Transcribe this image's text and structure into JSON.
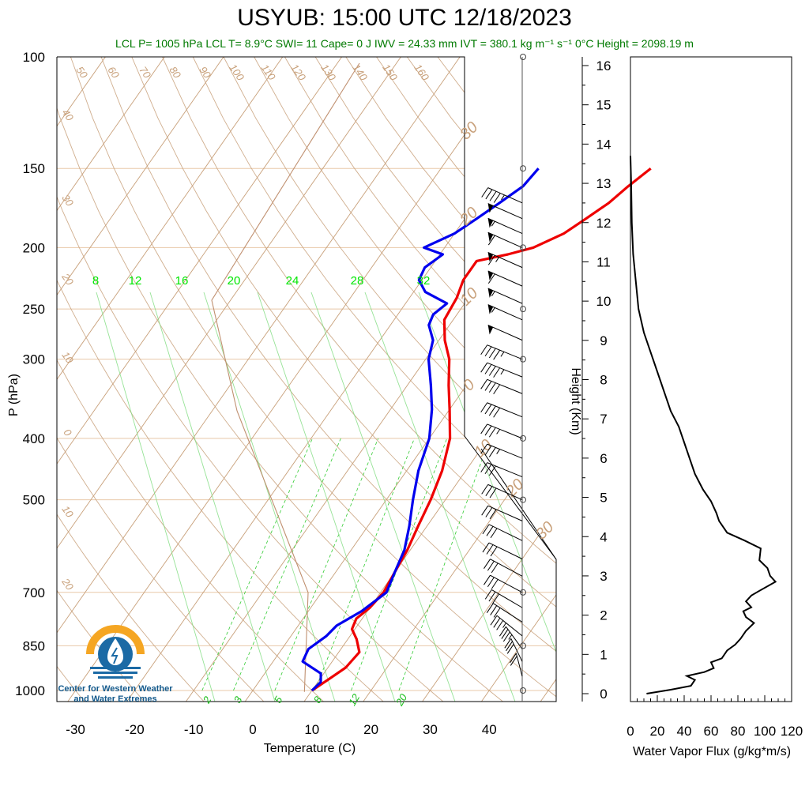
{
  "title": "USYUB: 15:00 UTC 12/18/2023",
  "subtitle": "LCL P= 1005 hPa  LCL T= 8.9°C  SWI= 11  Cape= 0 J  IWV = 24.33 mm  IVT = 380.1 kg m⁻¹ s⁻¹  0°C Height = 2098.19 m",
  "colors": {
    "temperature": "#ee0000",
    "dewpoint": "#0000ee",
    "subtitle": "#007a00",
    "mixing_ratio": "#33cc33",
    "adiabat": "#c8a07a",
    "isobar": "#e8c8a8"
  },
  "logo": {
    "icon": "water-drop-sun-icon",
    "text_line1": "Center for Western Weather",
    "text_line2": "and Water Extremes"
  },
  "chart_data": [
    {
      "type": "skew-t",
      "title": "USYUB: 15:00 UTC 12/18/2023",
      "xlabel": "Temperature (C)",
      "ylabel": "P (hPa)",
      "x_ticks": [
        "-30",
        "-20",
        "-10",
        "0",
        "10",
        "20",
        "30",
        "40"
      ],
      "x_tick_values": [
        -30,
        -20,
        -10,
        0,
        10,
        20,
        30,
        40
      ],
      "y_ticks": [
        "100",
        "150",
        "200",
        "250",
        "300",
        "400",
        "500",
        "700",
        "850",
        "1000"
      ],
      "y_tick_values": [
        100,
        150,
        200,
        250,
        300,
        400,
        500,
        700,
        850,
        1000
      ],
      "mixing_ratio_labels_upper": [
        "8",
        "12",
        "16",
        "20",
        "24",
        "28",
        "32"
      ],
      "mixing_ratio_labels_lower": [
        "2",
        "3",
        "5",
        "8",
        "12",
        "20"
      ],
      "dry_adiabat_labels": [
        "50",
        "60",
        "70",
        "80",
        "90",
        "100",
        "110",
        "120",
        "130",
        "140",
        "150",
        "160"
      ],
      "left_adiabat_labels": [
        "40",
        "30",
        "20",
        "10",
        "0",
        "10",
        "20"
      ],
      "right_labels": [
        "30",
        "20",
        "10",
        "0",
        "10",
        "20",
        "30"
      ],
      "series": [
        {
          "name": "Temperature",
          "points": [
            {
              "p": 150,
              "t": 5.5
            },
            {
              "p": 160,
              "t": 3.8
            },
            {
              "p": 170,
              "t": 2.5
            },
            {
              "p": 180,
              "t": 0.5
            },
            {
              "p": 190,
              "t": -1.5
            },
            {
              "p": 200,
              "t": -5.0
            },
            {
              "p": 205,
              "t": -8.5
            },
            {
              "p": 210,
              "t": -13.0
            },
            {
              "p": 225,
              "t": -13.0
            },
            {
              "p": 240,
              "t": -12.0
            },
            {
              "p": 260,
              "t": -11.5
            },
            {
              "p": 280,
              "t": -9.0
            },
            {
              "p": 300,
              "t": -6.0
            },
            {
              "p": 330,
              "t": -3.0
            },
            {
              "p": 360,
              "t": 0.0
            },
            {
              "p": 400,
              "t": 3.5
            },
            {
              "p": 450,
              "t": 6.0
            },
            {
              "p": 500,
              "t": 7.5
            },
            {
              "p": 550,
              "t": 8.5
            },
            {
              "p": 600,
              "t": 9.5
            },
            {
              "p": 650,
              "t": 10.0
            },
            {
              "p": 700,
              "t": 10.5
            },
            {
              "p": 740,
              "t": 10.0
            },
            {
              "p": 770,
              "t": 9.0
            },
            {
              "p": 800,
              "t": 9.5
            },
            {
              "p": 830,
              "t": 11.5
            },
            {
              "p": 870,
              "t": 13.5
            },
            {
              "p": 920,
              "t": 13.0
            },
            {
              "p": 960,
              "t": 11.5
            },
            {
              "p": 1000,
              "t": 10.0
            }
          ]
        },
        {
          "name": "Dewpoint",
          "points": [
            {
              "p": 150,
              "t": -13.5
            },
            {
              "p": 160,
              "t": -14.0
            },
            {
              "p": 170,
              "t": -16.0
            },
            {
              "p": 180,
              "t": -18.0
            },
            {
              "p": 190,
              "t": -20.0
            },
            {
              "p": 200,
              "t": -23.5
            },
            {
              "p": 205,
              "t": -19.5
            },
            {
              "p": 215,
              "t": -21.0
            },
            {
              "p": 225,
              "t": -20.5
            },
            {
              "p": 235,
              "t": -18.0
            },
            {
              "p": 245,
              "t": -13.0
            },
            {
              "p": 255,
              "t": -14.0
            },
            {
              "p": 265,
              "t": -13.5
            },
            {
              "p": 280,
              "t": -11.0
            },
            {
              "p": 300,
              "t": -9.5
            },
            {
              "p": 330,
              "t": -6.0
            },
            {
              "p": 360,
              "t": -3.0
            },
            {
              "p": 400,
              "t": 0.0
            },
            {
              "p": 450,
              "t": 2.0
            },
            {
              "p": 500,
              "t": 4.5
            },
            {
              "p": 550,
              "t": 7.0
            },
            {
              "p": 600,
              "t": 9.0
            },
            {
              "p": 650,
              "t": 10.0
            },
            {
              "p": 700,
              "t": 11.0
            },
            {
              "p": 750,
              "t": 9.0
            },
            {
              "p": 790,
              "t": 6.5
            },
            {
              "p": 820,
              "t": 6.0
            },
            {
              "p": 860,
              "t": 4.5
            },
            {
              "p": 900,
              "t": 5.0
            },
            {
              "p": 940,
              "t": 9.5
            },
            {
              "p": 970,
              "t": 10.5
            },
            {
              "p": 1000,
              "t": 10.0
            }
          ]
        }
      ]
    },
    {
      "type": "line",
      "xlabel": "Water Vapor Flux (g/kg*m/s)",
      "ylabel": "Height (Km)",
      "xlim": [
        0,
        120
      ],
      "ylim": [
        0,
        16
      ],
      "x_ticks": [
        "0",
        "20",
        "40",
        "60",
        "80",
        "100",
        "120"
      ],
      "y_ticks": [
        "0",
        "1",
        "2",
        "3",
        "4",
        "5",
        "6",
        "7",
        "8",
        "9",
        "10",
        "11",
        "12",
        "13",
        "14",
        "15",
        "16"
      ],
      "series": [
        {
          "points": [
            {
              "x": 12,
              "y": 0.0
            },
            {
              "x": 30,
              "y": 0.1
            },
            {
              "x": 45,
              "y": 0.2
            },
            {
              "x": 48,
              "y": 0.35
            },
            {
              "x": 42,
              "y": 0.45
            },
            {
              "x": 55,
              "y": 0.55
            },
            {
              "x": 62,
              "y": 0.65
            },
            {
              "x": 60,
              "y": 0.8
            },
            {
              "x": 68,
              "y": 0.9
            },
            {
              "x": 70,
              "y": 1.0
            },
            {
              "x": 72,
              "y": 1.1
            },
            {
              "x": 78,
              "y": 1.25
            },
            {
              "x": 82,
              "y": 1.4
            },
            {
              "x": 86,
              "y": 1.6
            },
            {
              "x": 92,
              "y": 1.8
            },
            {
              "x": 86,
              "y": 1.95
            },
            {
              "x": 84,
              "y": 2.1
            },
            {
              "x": 90,
              "y": 2.2
            },
            {
              "x": 86,
              "y": 2.35
            },
            {
              "x": 90,
              "y": 2.5
            },
            {
              "x": 95,
              "y": 2.6
            },
            {
              "x": 108,
              "y": 2.85
            },
            {
              "x": 104,
              "y": 3.0
            },
            {
              "x": 102,
              "y": 3.2
            },
            {
              "x": 96,
              "y": 3.4
            },
            {
              "x": 97,
              "y": 3.7
            },
            {
              "x": 85,
              "y": 3.9
            },
            {
              "x": 72,
              "y": 4.1
            },
            {
              "x": 66,
              "y": 4.4
            },
            {
              "x": 64,
              "y": 4.6
            },
            {
              "x": 60,
              "y": 4.9
            },
            {
              "x": 54,
              "y": 5.2
            },
            {
              "x": 48,
              "y": 5.6
            },
            {
              "x": 44,
              "y": 6.0
            },
            {
              "x": 40,
              "y": 6.4
            },
            {
              "x": 36,
              "y": 6.8
            },
            {
              "x": 30,
              "y": 7.2
            },
            {
              "x": 26,
              "y": 7.6
            },
            {
              "x": 22,
              "y": 8.0
            },
            {
              "x": 16,
              "y": 8.6
            },
            {
              "x": 10,
              "y": 9.2
            },
            {
              "x": 6,
              "y": 9.8
            },
            {
              "x": 4,
              "y": 10.5
            },
            {
              "x": 2,
              "y": 11.2
            },
            {
              "x": 1,
              "y": 12.0
            },
            {
              "x": 0.5,
              "y": 13.0
            },
            {
              "x": 0,
              "y": 13.7
            }
          ]
        }
      ]
    }
  ],
  "wind_barbs": [
    {
      "p": 170,
      "speed": 45,
      "dir": 250
    },
    {
      "p": 180,
      "speed": 50,
      "dir": 250
    },
    {
      "p": 190,
      "speed": 55,
      "dir": 250
    },
    {
      "p": 200,
      "speed": 60,
      "dir": 250
    },
    {
      "p": 215,
      "speed": 65,
      "dir": 250
    },
    {
      "p": 230,
      "speed": 60,
      "dir": 250
    },
    {
      "p": 245,
      "speed": 55,
      "dir": 250
    },
    {
      "p": 260,
      "speed": 55,
      "dir": 250
    },
    {
      "p": 280,
      "speed": 50,
      "dir": 250
    },
    {
      "p": 300,
      "speed": 45,
      "dir": 255
    },
    {
      "p": 320,
      "speed": 45,
      "dir": 255
    },
    {
      "p": 340,
      "speed": 40,
      "dir": 255
    },
    {
      "p": 370,
      "speed": 40,
      "dir": 255
    },
    {
      "p": 400,
      "speed": 35,
      "dir": 255
    },
    {
      "p": 430,
      "speed": 35,
      "dir": 255
    },
    {
      "p": 460,
      "speed": 30,
      "dir": 255
    },
    {
      "p": 500,
      "speed": 30,
      "dir": 250
    },
    {
      "p": 540,
      "speed": 30,
      "dir": 250
    },
    {
      "p": 580,
      "speed": 30,
      "dir": 245
    },
    {
      "p": 620,
      "speed": 30,
      "dir": 245
    },
    {
      "p": 660,
      "speed": 30,
      "dir": 240
    },
    {
      "p": 700,
      "speed": 30,
      "dir": 240
    },
    {
      "p": 740,
      "speed": 30,
      "dir": 235
    },
    {
      "p": 780,
      "speed": 30,
      "dir": 230
    },
    {
      "p": 820,
      "speed": 35,
      "dir": 220
    },
    {
      "p": 860,
      "speed": 35,
      "dir": 200
    },
    {
      "p": 900,
      "speed": 30,
      "dir": 190
    },
    {
      "p": 950,
      "speed": 20,
      "dir": 180
    }
  ]
}
